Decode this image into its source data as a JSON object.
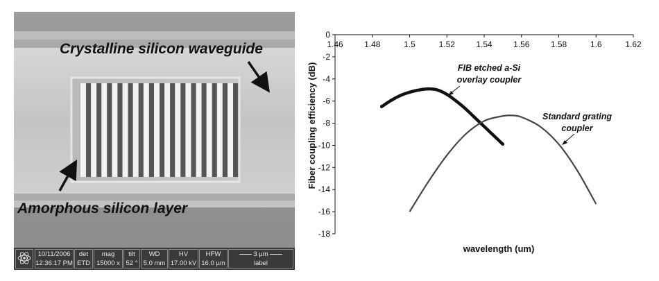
{
  "sem": {
    "label_waveguide": "Crystalline silicon waveguide",
    "label_amorphous": "Amorphous silicon layer",
    "grating_lines": 15,
    "infobar": {
      "date": "10/11/2006",
      "time": "12:36:17 PM",
      "det_label": "det",
      "det_value": "ETD",
      "mag_label": "mag",
      "mag_value": "15000 x",
      "tilt_label": "tilt",
      "tilt_value": "52 °",
      "wd_label": "WD",
      "wd_value": "5.0 mm",
      "hv_label": "HV",
      "hv_value": "17.00 kV",
      "hfw_label": "HFW",
      "hfw_value": "16.0 µm",
      "scale_label": "3 µm",
      "image_label": "label"
    }
  },
  "chart_data": {
    "type": "line",
    "xlabel": "wavelength (um)",
    "ylabel": "Fiber coupling efficiency (dB)",
    "xlim": [
      1.46,
      1.62
    ],
    "ylim": [
      -18,
      0
    ],
    "x_ticks": [
      "1.46",
      "1.48",
      "1.5",
      "1.52",
      "1.54",
      "1.56",
      "1.58",
      "1.6",
      "1.62"
    ],
    "y_ticks": [
      "0",
      "-2",
      "-4",
      "-6",
      "-8",
      "-10",
      "-12",
      "-14",
      "-16",
      "-18"
    ],
    "x_axis_position": "top",
    "grid": false,
    "series": [
      {
        "name": "FIB etched a-Si overlay coupler",
        "style": "dotted-markers",
        "color": "#111111",
        "x": [
          1.485,
          1.49,
          1.495,
          1.5,
          1.505,
          1.51,
          1.515,
          1.52,
          1.525,
          1.53,
          1.535,
          1.54,
          1.545,
          1.55
        ],
        "y": [
          -6.5,
          -5.95,
          -5.5,
          -5.2,
          -5.0,
          -4.9,
          -5.0,
          -5.4,
          -6.0,
          -6.7,
          -7.5,
          -8.3,
          -9.1,
          -9.9
        ]
      },
      {
        "name": "Standard grating coupler",
        "style": "line",
        "color": "#444444",
        "x": [
          1.5,
          1.51,
          1.52,
          1.53,
          1.54,
          1.55,
          1.555,
          1.56,
          1.57,
          1.58,
          1.59,
          1.6
        ],
        "y": [
          -16.0,
          -13.3,
          -10.9,
          -9.0,
          -7.8,
          -7.35,
          -7.3,
          -7.45,
          -8.3,
          -9.9,
          -12.3,
          -15.3
        ]
      }
    ],
    "annotations": [
      {
        "line1": "FIB etched a-Si",
        "line2": "overlay coupler"
      },
      {
        "line1": "Standard grating",
        "line2": "coupler"
      }
    ]
  }
}
